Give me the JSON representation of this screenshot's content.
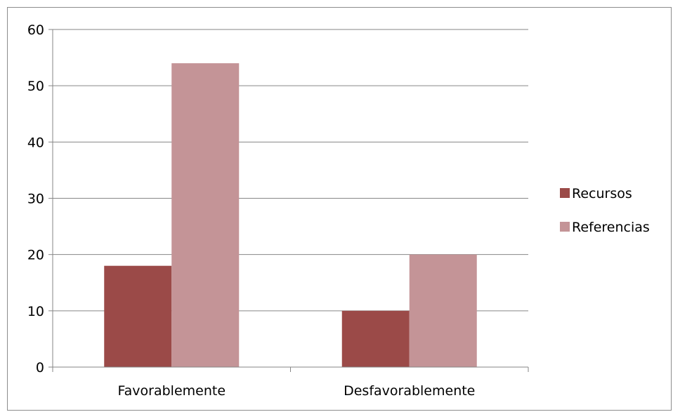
{
  "chart_data": {
    "type": "bar",
    "title": "",
    "xlabel": "",
    "ylabel": "",
    "categories": [
      "Favorablemente",
      "Desfavorablemente"
    ],
    "series": [
      {
        "name": "Recursos",
        "values": [
          18,
          10
        ],
        "color": "#9b4a48"
      },
      {
        "name": "Referencias",
        "values": [
          54,
          20
        ],
        "color": "#c49497"
      }
    ],
    "ylim": [
      0,
      60
    ],
    "yticks": [
      0,
      10,
      20,
      30,
      40,
      50,
      60
    ],
    "grid": true,
    "legend": "right"
  }
}
